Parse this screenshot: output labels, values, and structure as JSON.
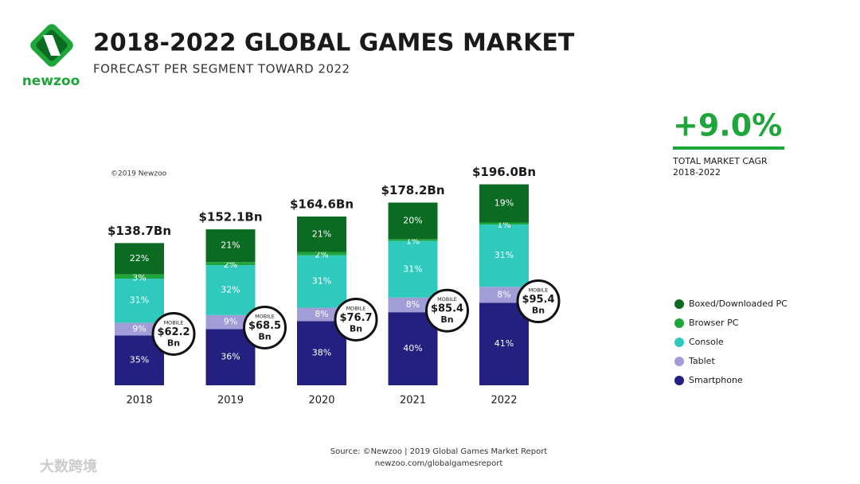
{
  "logo": "newzoo",
  "chart_data": {
    "type": "stacked_bar",
    "title": "2018-2022 GLOBAL GAMES MARKET",
    "subtitle": "FORECAST PER SEGMENT TOWARD 2022",
    "copyright": "©2019 Newzoo",
    "categories": [
      "2018",
      "2019",
      "2020",
      "2021",
      "2022"
    ],
    "totals": {
      "values": [
        138.7,
        152.1,
        164.6,
        178.2,
        196.0
      ],
      "value_labels": [
        "$138.7Bn",
        "$152.1Bn",
        "$164.6Bn",
        "$178.2Bn",
        "$196.0Bn"
      ]
    },
    "series": [
      {
        "name": "Smartphone",
        "color": "#23207f",
        "values": [
          35,
          36,
          38,
          40,
          41
        ],
        "value_labels": [
          "35%",
          "36%",
          "38%",
          "40%",
          "41%"
        ]
      },
      {
        "name": "Tablet",
        "color": "#a19dd6",
        "values": [
          9,
          9,
          8,
          8,
          8
        ],
        "value_labels": [
          "9%",
          "9%",
          "8%",
          "8%",
          "8%"
        ]
      },
      {
        "name": "Console",
        "color": "#2fcabd",
        "values": [
          31,
          32,
          31,
          31,
          31
        ],
        "value_labels": [
          "31%",
          "32%",
          "31%",
          "31%",
          "31%"
        ]
      },
      {
        "name": "Browser PC",
        "color": "#1ea63b",
        "values": [
          3,
          2,
          2,
          1,
          1
        ],
        "value_labels": [
          "3%",
          "2%",
          "2%",
          "1%",
          "1%"
        ]
      },
      {
        "name": "Boxed/Downloaded PC",
        "color": "#0c6b23",
        "values": [
          22,
          21,
          21,
          20,
          19
        ],
        "value_labels": [
          "22%",
          "21%",
          "21%",
          "20%",
          "19%"
        ]
      }
    ],
    "mobile": {
      "label": "MOBILE",
      "unit": "Bn",
      "values": [
        62.2,
        68.5,
        76.7,
        85.4,
        95.4
      ],
      "value_labels": [
        "$62.2",
        "$68.5",
        "$76.7",
        "$85.4",
        "$95.4"
      ]
    },
    "cagr": {
      "value": 9.0,
      "label": "+9.0%",
      "caption": "TOTAL MARKET CAGR",
      "period": "2018-2022"
    },
    "source": [
      "Source: ©Newzoo | 2019 Global Games Market Report",
      "newzoo.com/globalgamesreport"
    ]
  },
  "watermark": "大数跨境"
}
